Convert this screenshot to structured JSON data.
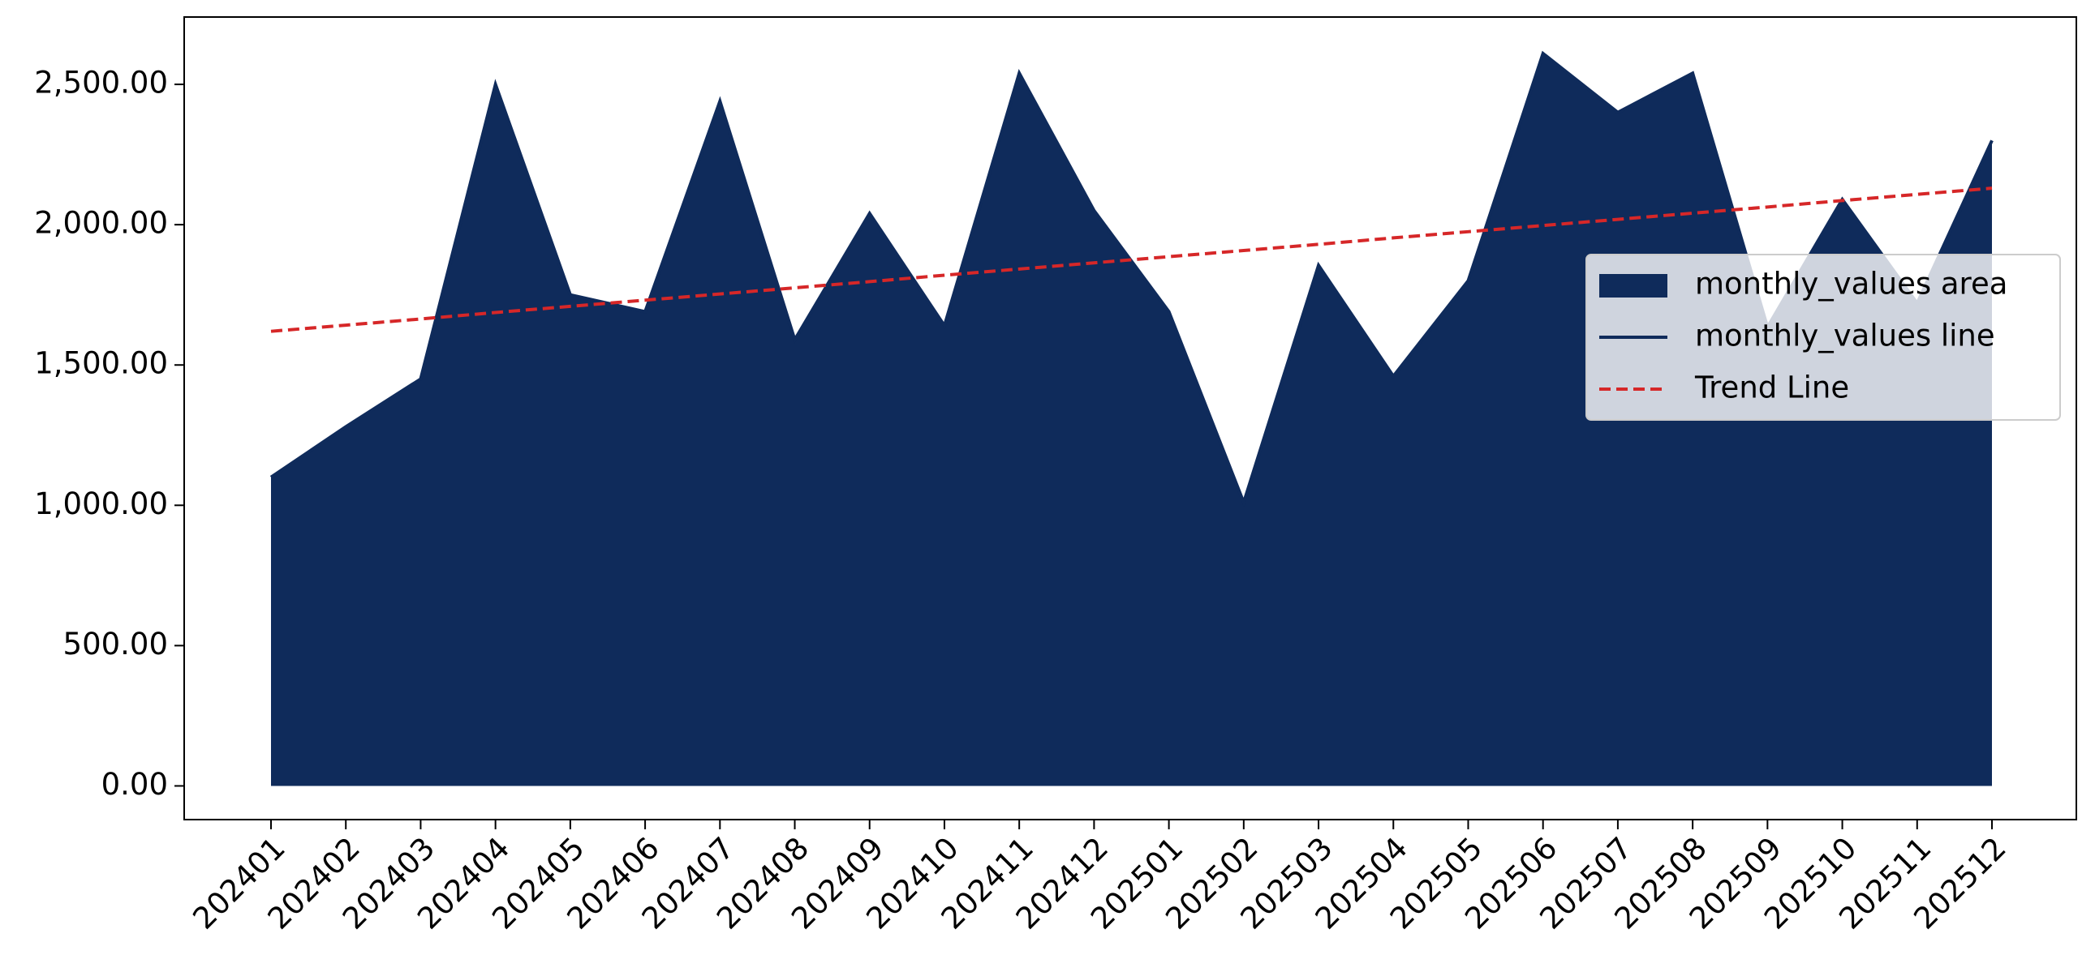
{
  "chart_data": {
    "type": "area",
    "categories": [
      "202401",
      "202402",
      "202403",
      "202404",
      "202405",
      "202406",
      "202407",
      "202408",
      "202409",
      "202410",
      "202411",
      "202412",
      "202501",
      "202502",
      "202503",
      "202504",
      "202505",
      "202506",
      "202507",
      "202508",
      "202509",
      "202510",
      "202511",
      "202512"
    ],
    "series": [
      {
        "name": "monthly_values area",
        "type": "area",
        "color": "#0f2b5b",
        "values": [
          1100,
          1280,
          1450,
          2500,
          1750,
          1690,
          2440,
          1590,
          2040,
          1640,
          2540,
          2050,
          1690,
          1010,
          1855,
          1460,
          1800,
          2610,
          2400,
          2540,
          1635,
          2090,
          1720,
          2300
        ]
      },
      {
        "name": "monthly_values line",
        "type": "line",
        "color": "#0f2b5b",
        "values": [
          1100,
          1280,
          1450,
          2500,
          1750,
          1690,
          2440,
          1590,
          2040,
          1640,
          2540,
          2050,
          1690,
          1010,
          1855,
          1460,
          1800,
          2610,
          2400,
          2540,
          1635,
          2090,
          1720,
          2300
        ]
      },
      {
        "name": "Trend Line",
        "type": "line",
        "dashed": true,
        "color": "#d62728",
        "values": [
          1620,
          1642,
          1664,
          1687,
          1709,
          1731,
          1753,
          1775,
          1797,
          1820,
          1842,
          1864,
          1886,
          1908,
          1930,
          1953,
          1975,
          1997,
          2019,
          2041,
          2063,
          2086,
          2108,
          2130
        ]
      }
    ],
    "ylim": [
      -120,
      2740
    ],
    "yticks": [
      {
        "value": 0,
        "label": "0.00"
      },
      {
        "value": 500,
        "label": "500.00"
      },
      {
        "value": 1000,
        "label": "1,000.00"
      },
      {
        "value": 1500,
        "label": "1,500.00"
      },
      {
        "value": 2000,
        "label": "2,000.00"
      },
      {
        "value": 2500,
        "label": "2,500.00"
      }
    ],
    "legend": "center right",
    "grid": false
  }
}
